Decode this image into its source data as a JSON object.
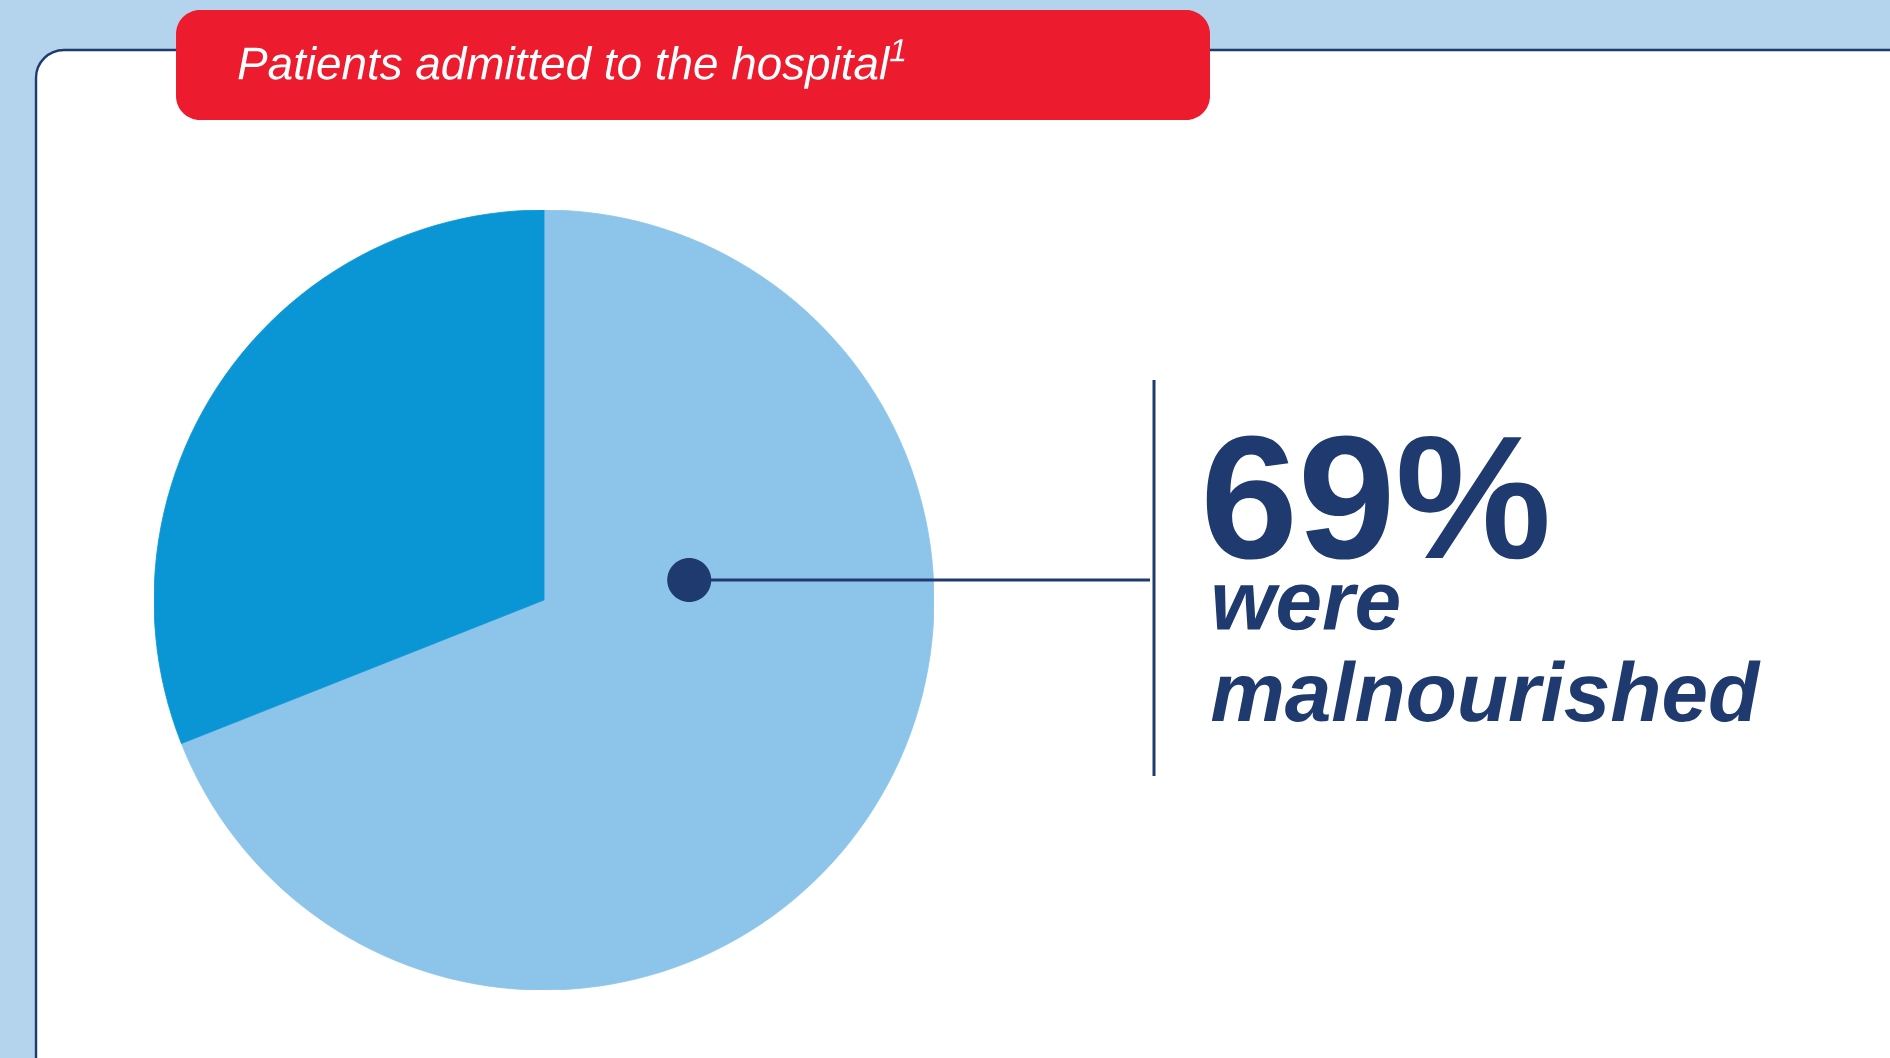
{
  "chart_data": {
    "type": "pie",
    "title": "Patients admitted to the hospital$^{1}$",
    "categories": [
      null,
      null
    ],
    "values": [
      69,
      31
    ],
    "colors": [
      "#8cc4ea",
      "#0a95d4"
    ],
    "value_labels": [
      "69%",
      null
    ],
    "annotations": [
      "were malnourished"
    ]
  }
}
